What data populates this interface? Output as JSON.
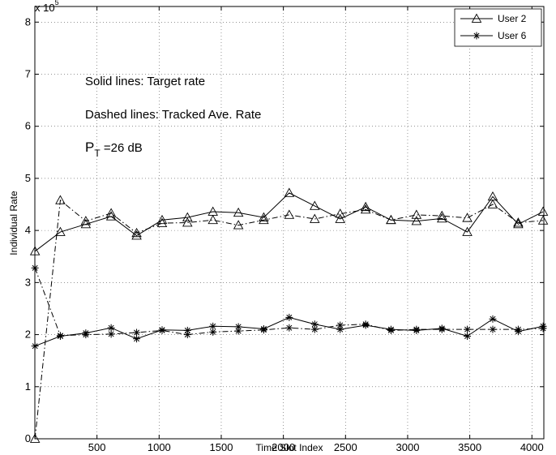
{
  "chart_data": {
    "type": "line",
    "xlabel": "Time Slot Index",
    "ylabel": "Individual Rate",
    "y_multiplier_label": "x 10",
    "y_multiplier_exponent": "5",
    "xlim": [
      0,
      4096
    ],
    "ylim": [
      0,
      8.3
    ],
    "xticks": [
      500,
      1000,
      1500,
      2000,
      2500,
      3000,
      3500,
      4000
    ],
    "yticks": [
      0,
      1,
      2,
      3,
      4,
      5,
      6,
      7,
      8
    ],
    "grid": true,
    "legend_position": "top-right",
    "legend": [
      {
        "label": "User 2",
        "marker": "triangle"
      },
      {
        "label": "User 6",
        "marker": "asterisk"
      }
    ],
    "annotations": [
      "Solid lines: Target rate",
      "Dashed lines: Tracked Ave. Rate"
    ],
    "pt_annotation": {
      "base": "P",
      "subscript": "T",
      "rest": " =26 dB"
    },
    "x": [
      1,
      205,
      410,
      614,
      819,
      1024,
      1228,
      1433,
      1638,
      1842,
      2047,
      2252,
      2457,
      2662,
      2866,
      3071,
      3276,
      3480,
      3685,
      3890,
      4090
    ],
    "series": [
      {
        "user": "User 2",
        "style": "solid",
        "marker": "triangle",
        "values": [
          3.6,
          3.97,
          4.12,
          4.27,
          3.9,
          4.2,
          4.25,
          4.36,
          4.34,
          4.25,
          4.72,
          4.47,
          4.22,
          4.45,
          4.2,
          4.18,
          4.23,
          3.97,
          4.65,
          4.12,
          4.36
        ]
      },
      {
        "user": "User 2",
        "style": "dashed",
        "marker": "triangle",
        "values": [
          0.0,
          4.58,
          4.18,
          4.33,
          3.95,
          4.14,
          4.15,
          4.2,
          4.1,
          4.2,
          4.3,
          4.22,
          4.32,
          4.4,
          4.2,
          4.3,
          4.28,
          4.24,
          4.5,
          4.15,
          4.19
        ]
      },
      {
        "user": "User 6",
        "style": "solid",
        "marker": "asterisk",
        "values": [
          1.78,
          1.97,
          2.03,
          2.13,
          1.92,
          2.09,
          2.08,
          2.16,
          2.15,
          2.11,
          2.33,
          2.2,
          2.1,
          2.18,
          2.1,
          2.08,
          2.12,
          1.97,
          2.3,
          2.06,
          2.16
        ]
      },
      {
        "user": "User 6",
        "style": "dashed",
        "marker": "asterisk",
        "values": [
          3.28,
          1.98,
          2.0,
          2.01,
          2.04,
          2.08,
          2.0,
          2.05,
          2.07,
          2.09,
          2.13,
          2.1,
          2.18,
          2.2,
          2.08,
          2.1,
          2.1,
          2.1,
          2.1,
          2.1,
          2.12
        ]
      }
    ]
  }
}
